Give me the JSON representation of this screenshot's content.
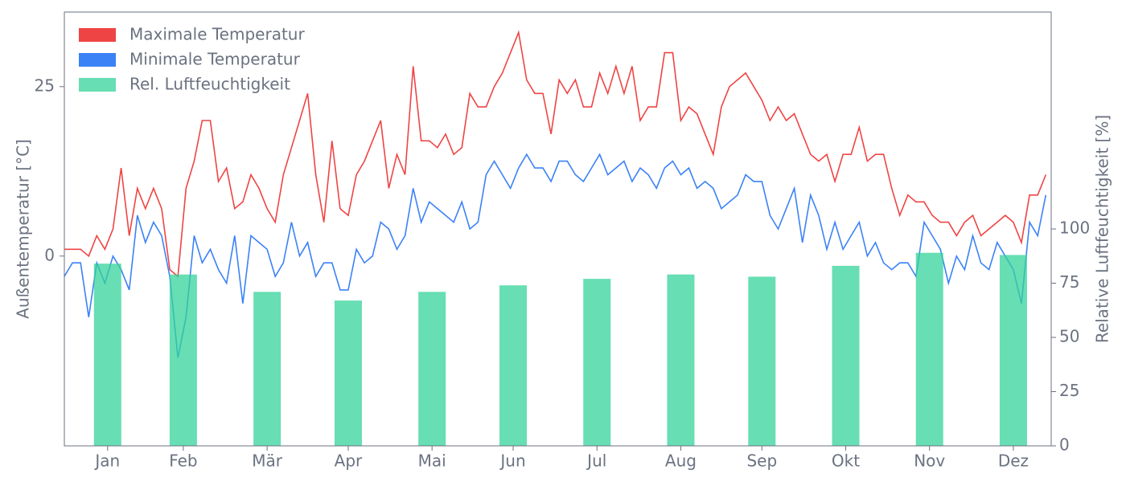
{
  "chart_data": {
    "type": "line",
    "x": [
      0,
      3,
      6,
      9,
      12,
      15,
      18,
      21,
      24,
      27,
      30,
      33,
      36,
      39,
      42,
      45,
      48,
      51,
      54,
      57,
      60,
      63,
      66,
      69,
      72,
      75,
      78,
      81,
      84,
      87,
      90,
      93,
      96,
      99,
      102,
      105,
      108,
      111,
      114,
      117,
      120,
      123,
      126,
      129,
      132,
      135,
      138,
      141,
      144,
      147,
      150,
      153,
      156,
      159,
      162,
      165,
      168,
      171,
      174,
      177,
      180,
      183,
      186,
      189,
      192,
      195,
      198,
      201,
      204,
      207,
      210,
      213,
      216,
      219,
      222,
      225,
      228,
      231,
      234,
      237,
      240,
      243,
      246,
      249,
      252,
      255,
      258,
      261,
      264,
      267,
      270,
      273,
      276,
      279,
      282,
      285,
      288,
      291,
      294,
      297,
      300,
      303,
      306,
      309,
      312,
      315,
      318,
      321,
      324,
      327,
      330,
      333,
      336,
      339,
      342,
      345,
      348,
      351,
      354,
      357,
      360,
      363
    ],
    "xlim": [
      0,
      365
    ],
    "xticks": [
      {
        "value": 16,
        "label": "Jan"
      },
      {
        "value": 44,
        "label": "Feb"
      },
      {
        "value": 75,
        "label": "Mär"
      },
      {
        "value": 105,
        "label": "Apr"
      },
      {
        "value": 136,
        "label": "Mai"
      },
      {
        "value": 166,
        "label": "Jun"
      },
      {
        "value": 197,
        "label": "Jul"
      },
      {
        "value": 228,
        "label": "Aug"
      },
      {
        "value": 258,
        "label": "Sep"
      },
      {
        "value": 289,
        "label": "Okt"
      },
      {
        "value": 320,
        "label": "Nov"
      },
      {
        "value": 351,
        "label": "Dez"
      }
    ],
    "ylim": [
      -28,
      36
    ],
    "yticks": [
      0,
      25
    ],
    "y2lim": [
      0,
      200
    ],
    "y2ticks": [
      0,
      25,
      50,
      75,
      100
    ],
    "ylabel": "Außentemperatur [°C]",
    "y2label": "Relative Luftfeuchtigkeit [%]",
    "legend": "upper left",
    "series": [
      {
        "name": "Maximale Temperatur",
        "color": "#ef4444",
        "values": [
          1,
          1,
          1,
          0,
          3,
          1,
          4,
          13,
          3,
          10,
          7,
          10,
          7,
          -2,
          -3,
          10,
          14,
          20,
          20,
          11,
          13,
          7,
          8,
          12,
          10,
          7,
          5,
          12,
          16,
          20,
          24,
          12,
          5,
          17,
          7,
          6,
          12,
          14,
          17,
          20,
          10,
          15,
          12,
          28,
          17,
          17,
          16,
          18,
          15,
          16,
          24,
          22,
          22,
          25,
          27,
          30,
          33,
          26,
          24,
          24,
          18,
          26,
          24,
          26,
          22,
          22,
          27,
          24,
          28,
          24,
          28,
          20,
          22,
          22,
          30,
          30,
          20,
          22,
          21,
          18,
          15,
          22,
          25,
          26,
          27,
          25,
          23,
          20,
          22,
          20,
          21,
          18,
          15,
          14,
          15,
          11,
          15,
          15,
          19,
          14,
          15,
          15,
          10,
          6,
          9,
          8,
          8,
          6,
          5,
          5,
          3,
          5,
          6,
          3,
          4,
          5,
          6,
          5,
          2,
          9,
          9,
          12
        ]
      },
      {
        "name": "Minimale Temperatur",
        "color": "#3b82f6",
        "values": [
          -3,
          -1,
          -1,
          -9,
          -1,
          -4,
          0,
          -2,
          -5,
          6,
          2,
          5,
          3,
          -3,
          -15,
          -9,
          3,
          -1,
          1,
          -2,
          -4,
          3,
          -7,
          3,
          2,
          1,
          -3,
          -1,
          5,
          0,
          2,
          -3,
          -1,
          -1,
          -5,
          -5,
          1,
          -1,
          0,
          5,
          4,
          1,
          3,
          10,
          5,
          8,
          7,
          6,
          5,
          8,
          4,
          5,
          12,
          14,
          12,
          10,
          13,
          15,
          13,
          13,
          11,
          14,
          14,
          12,
          11,
          13,
          15,
          12,
          13,
          14,
          11,
          13,
          12,
          10,
          13,
          14,
          12,
          13,
          10,
          11,
          10,
          7,
          8,
          9,
          12,
          11,
          11,
          6,
          4,
          7,
          10,
          2,
          9,
          6,
          1,
          5,
          1,
          3,
          5,
          0,
          2,
          -1,
          -2,
          -1,
          -1,
          -3,
          5,
          3,
          1,
          -4,
          0,
          -2,
          3,
          -1,
          -2,
          2,
          0,
          -2,
          -7,
          5,
          3,
          9
        ]
      },
      {
        "name": "Rel. Luftfeuchtigkeit",
        "color": "#34d399",
        "type": "bar",
        "axis": "y2",
        "x": [
          16,
          44,
          75,
          105,
          136,
          166,
          197,
          228,
          258,
          289,
          320,
          351
        ],
        "values": [
          84,
          79,
          71,
          67,
          71,
          74,
          77,
          79,
          78,
          83,
          89,
          88
        ]
      }
    ]
  }
}
